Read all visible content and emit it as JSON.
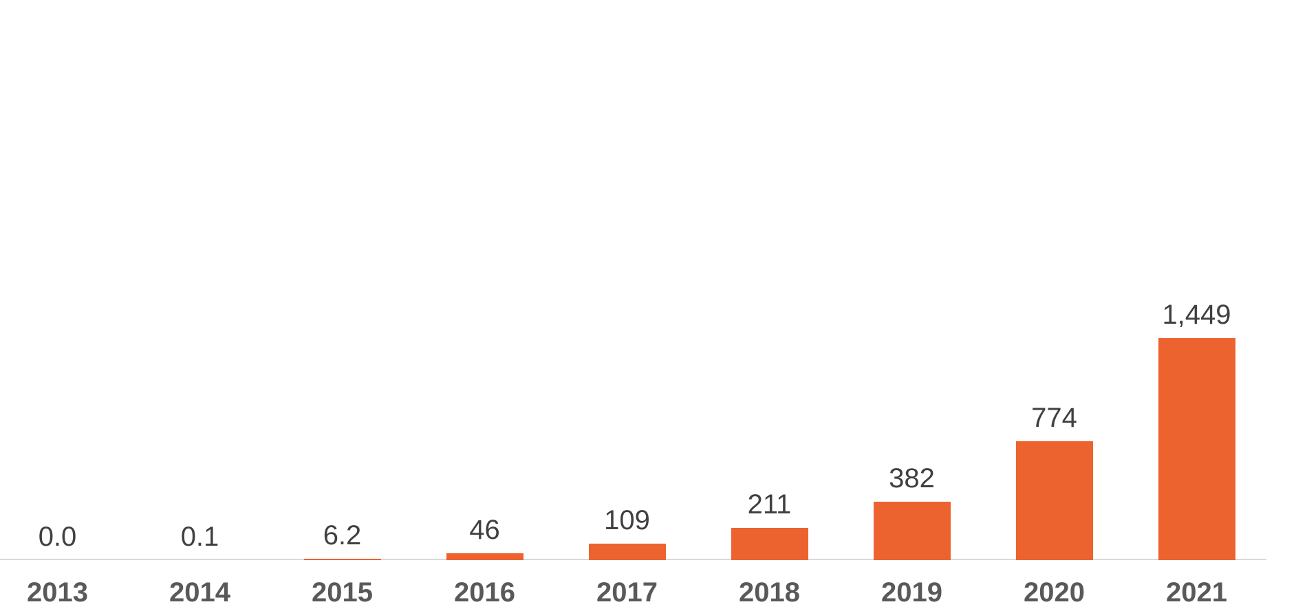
{
  "chart_data": {
    "type": "bar",
    "title": "",
    "xlabel": "",
    "ylabel": "",
    "categories": [
      "2013",
      "2014",
      "2015",
      "2016",
      "2017",
      "2018",
      "2019",
      "2020",
      "2021"
    ],
    "values": [
      0.0,
      0.1,
      6.2,
      46,
      109,
      211,
      382,
      774,
      1449
    ],
    "value_labels": [
      "0.0",
      "0.1",
      "6.2",
      "46",
      "109",
      "211",
      "382",
      "774",
      "1,449"
    ],
    "ylim": [
      0,
      1449
    ],
    "grid": false,
    "legend_position": "none",
    "colors": {
      "bar": "#EC6330",
      "value_label": "#404040",
      "tick_label": "#595959",
      "axis_line": "#D9D9D9",
      "background": "#FFFFFF"
    }
  }
}
